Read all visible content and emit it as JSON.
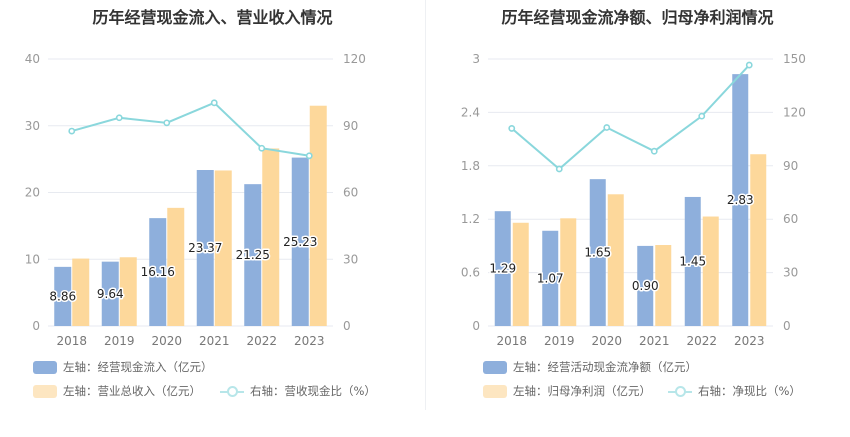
{
  "colors": {
    "primary_bar": "#8eafdc",
    "secondary_bar": "#fdd89b",
    "ratio_line": "#8ad7dc",
    "axis_text": "#999999",
    "grid": "#e7eaf0",
    "label_text": "#222222"
  },
  "chart_data": [
    {
      "type": "bar",
      "title": "历年经营现金流入、营业收入情况",
      "categories": [
        "2018",
        "2019",
        "2020",
        "2021",
        "2022",
        "2023"
      ],
      "left_axis": {
        "ticks": [
          "0",
          "10",
          "20",
          "30",
          "40"
        ],
        "ylim": [
          0,
          40
        ]
      },
      "right_axis": {
        "ticks": [
          "0",
          "30",
          "60",
          "90",
          "120"
        ],
        "ylim": [
          0,
          120
        ]
      },
      "series": [
        {
          "name": "左轴：经营现金流入（亿元）",
          "axis": "left",
          "kind": "bar",
          "values": [
            8.86,
            9.64,
            16.16,
            23.37,
            21.25,
            25.23
          ],
          "labels": [
            "8.86",
            "9.64",
            "16.16",
            "23.37",
            "21.25",
            "25.23"
          ]
        },
        {
          "name": "左轴：营业总收入（亿元）",
          "axis": "left",
          "kind": "bar",
          "values": [
            10.1,
            10.3,
            17.7,
            23.3,
            26.6,
            33.0
          ]
        },
        {
          "name": "右轴：营收现金比（%）",
          "axis": "right",
          "kind": "line",
          "values": [
            87.6,
            93.6,
            91.3,
            100.3,
            79.9,
            76.5
          ]
        }
      ]
    },
    {
      "type": "bar",
      "title": "历年经营现金流净额、归母净利润情况",
      "categories": [
        "2018",
        "2019",
        "2020",
        "2021",
        "2022",
        "2023"
      ],
      "left_axis": {
        "ticks": [
          "0",
          "0.6",
          "1.2",
          "1.8",
          "2.4",
          "3"
        ],
        "ylim": [
          0,
          3
        ]
      },
      "right_axis": {
        "ticks": [
          "0",
          "30",
          "60",
          "90",
          "120",
          "150"
        ],
        "ylim": [
          0,
          150
        ]
      },
      "series": [
        {
          "name": "左轴：经营活动现金流净额（亿元）",
          "axis": "left",
          "kind": "bar",
          "values": [
            1.29,
            1.07,
            1.65,
            0.9,
            1.45,
            2.83
          ],
          "labels": [
            "1.29",
            "1.07",
            "1.65",
            "0.90",
            "1.45",
            "2.83"
          ]
        },
        {
          "name": "左轴：归母净利润（亿元）",
          "axis": "left",
          "kind": "bar",
          "values": [
            1.16,
            1.21,
            1.48,
            0.91,
            1.23,
            1.93
          ]
        },
        {
          "name": "右轴：净现比（%）",
          "axis": "right",
          "kind": "line",
          "values": [
            111.0,
            88.2,
            111.5,
            98.2,
            117.9,
            146.6
          ]
        }
      ]
    }
  ]
}
